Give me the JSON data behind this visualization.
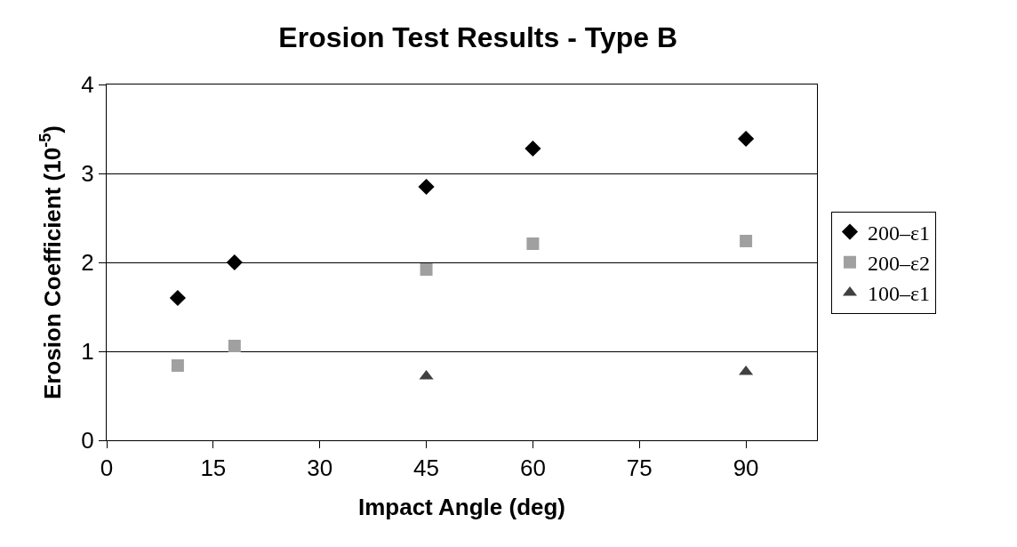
{
  "chart_data": {
    "type": "scatter",
    "title": "Erosion Test Results - Type B",
    "xlabel": "Impact Angle (deg)",
    "ylabel": "Erosion Coefficient (10$^{-5}$)",
    "xlim": [
      0,
      100
    ],
    "xticks": [
      0,
      15,
      30,
      45,
      60,
      75,
      90
    ],
    "ylim": [
      0,
      4
    ],
    "yticks": [
      0,
      1,
      2,
      3,
      4
    ],
    "grid": "y",
    "legend": "right",
    "series": [
      {
        "name": "200–ε1",
        "color": "#000000",
        "marker": "diamond",
        "x": [
          10,
          18,
          45,
          60,
          90
        ],
        "values": [
          1.6,
          2.0,
          2.85,
          3.28,
          3.39
        ]
      },
      {
        "name": "200–ε2",
        "color": "#a0a0a0",
        "marker": "square",
        "x": [
          10,
          18,
          45,
          60,
          90
        ],
        "values": [
          0.84,
          1.06,
          1.92,
          2.21,
          2.24
        ]
      },
      {
        "name": "100–ε1",
        "color": "#404040",
        "marker": "triangle",
        "x": [
          45,
          90
        ],
        "values": [
          0.72,
          0.77
        ]
      }
    ]
  }
}
